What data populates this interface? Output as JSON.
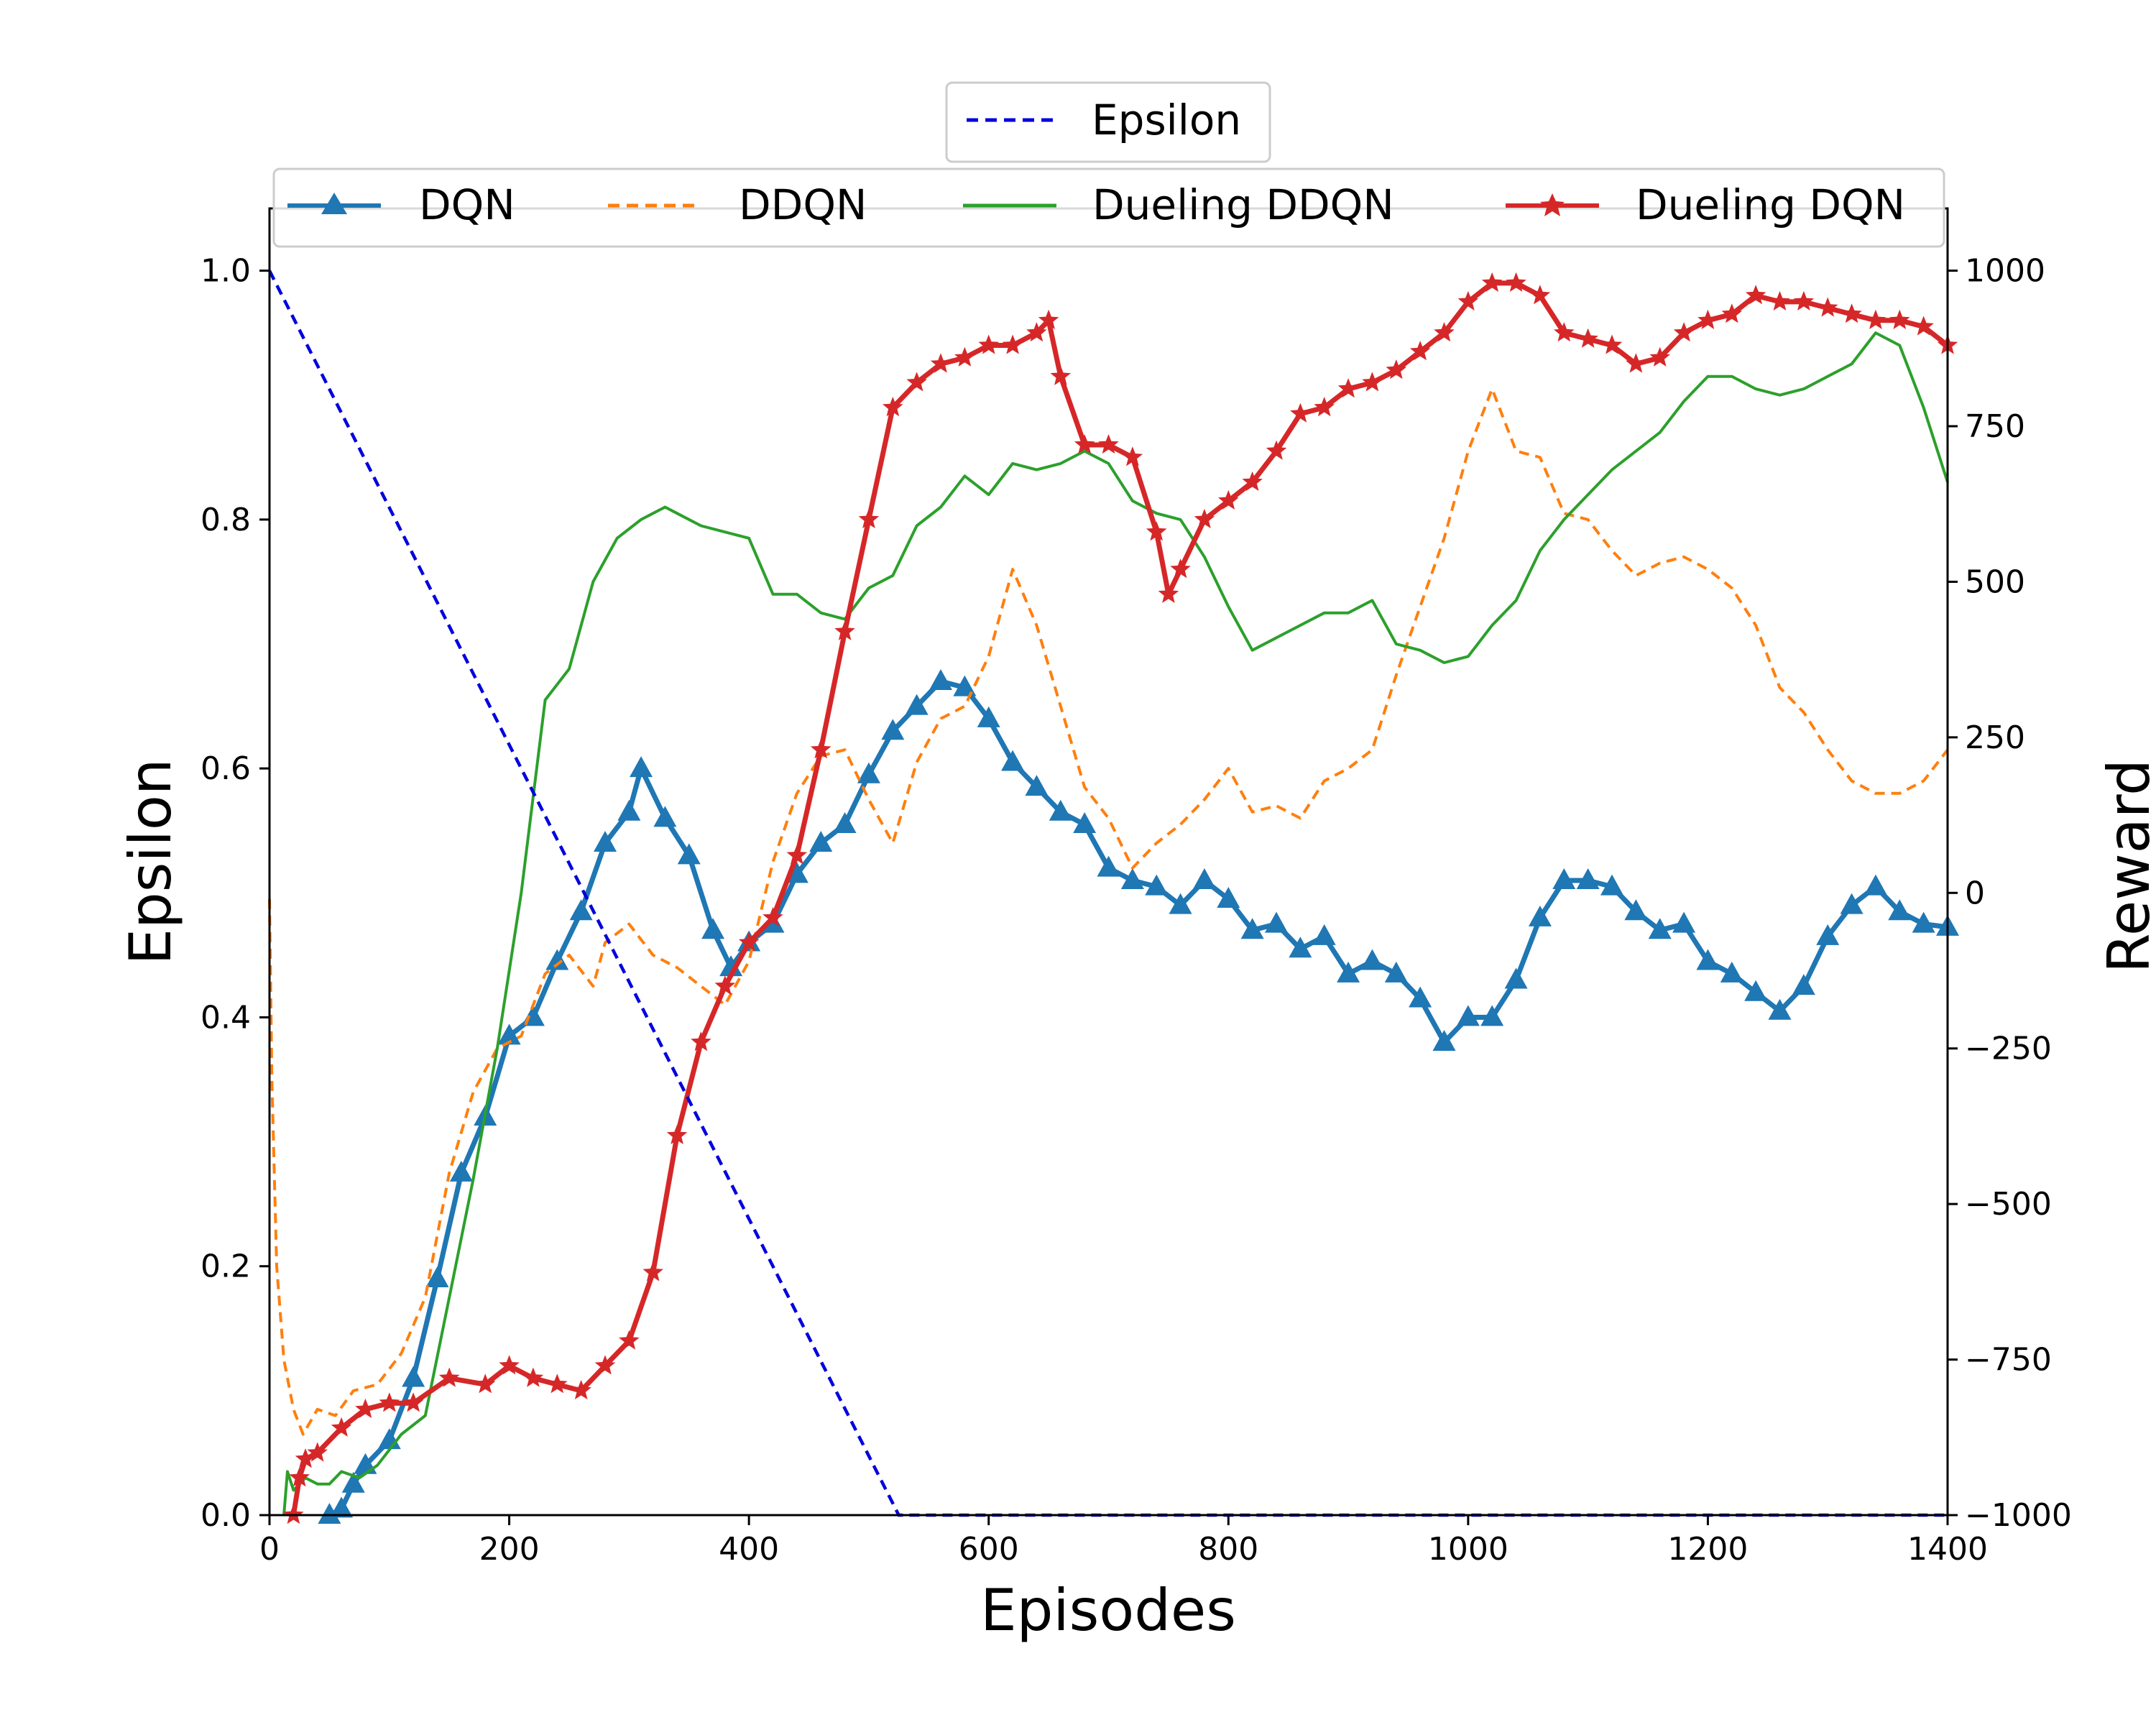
{
  "chart_data": {
    "type": "line",
    "xlabel": "Episodes",
    "ylabel_left": "Epsilon",
    "ylabel_right": "Reward",
    "xlim": [
      0,
      1400
    ],
    "ylim_left": [
      0,
      1.05
    ],
    "ylim_right": [
      -1000,
      1100
    ],
    "x_ticks": [
      "0",
      "200",
      "400",
      "600",
      "800",
      "1000",
      "1200",
      "1400"
    ],
    "y_left_ticks": [
      "0.0",
      "0.2",
      "0.4",
      "0.6",
      "0.8",
      "1.0"
    ],
    "y_right_ticks": [
      "−1000",
      "−750",
      "−500",
      "−250",
      "0",
      "250",
      "500",
      "750",
      "1000"
    ],
    "grid": false,
    "legend_top": {
      "placement": "top-center",
      "entries": [
        "Epsilon"
      ]
    },
    "legend_main": {
      "placement": "top",
      "entries": [
        "DQN",
        "DDQN",
        "Dueling DDQN",
        "Dueling DQN"
      ]
    },
    "epsilon": {
      "name": "Epsilon",
      "color": "#0000dd",
      "style": "dashed",
      "x": [
        0,
        525,
        1400
      ],
      "y": [
        1.0,
        0.0,
        0.0
      ]
    },
    "series": [
      {
        "name": "DQN",
        "color": "#1f77b4",
        "style": "solid",
        "marker": "triangle",
        "x": [
          50,
          60,
          70,
          80,
          100,
          120,
          140,
          160,
          180,
          200,
          220,
          240,
          260,
          280,
          300,
          310,
          330,
          350,
          370,
          385,
          400,
          420,
          440,
          460,
          480,
          500,
          520,
          540,
          560,
          580,
          600,
          620,
          640,
          660,
          680,
          700,
          720,
          740,
          760,
          780,
          800,
          820,
          840,
          860,
          880,
          900,
          920,
          940,
          960,
          980,
          1000,
          1020,
          1040,
          1060,
          1080,
          1100,
          1120,
          1140,
          1160,
          1180,
          1200,
          1220,
          1240,
          1260,
          1280,
          1300,
          1320,
          1340,
          1360,
          1380,
          1400
        ],
        "y": [
          -1000,
          -990,
          -950,
          -920,
          -880,
          -780,
          -620,
          -450,
          -360,
          -230,
          -200,
          -110,
          -30,
          80,
          130,
          200,
          120,
          60,
          -60,
          -120,
          -80,
          -50,
          30,
          80,
          110,
          190,
          260,
          300,
          340,
          330,
          280,
          210,
          170,
          130,
          110,
          40,
          20,
          10,
          -20,
          20,
          -10,
          -60,
          -50,
          -90,
          -70,
          -130,
          -110,
          -130,
          -170,
          -240,
          -200,
          -200,
          -140,
          -40,
          20,
          20,
          10,
          -30,
          -60,
          -50,
          -110,
          -130,
          -160,
          -190,
          -150,
          -70,
          -20,
          10,
          -30,
          -50,
          -55
        ]
      },
      {
        "name": "DDQN",
        "color": "#ff7f0e",
        "style": "dashed",
        "marker": "none",
        "x": [
          0,
          2,
          6,
          12,
          20,
          28,
          40,
          55,
          70,
          90,
          110,
          130,
          150,
          170,
          190,
          210,
          230,
          250,
          270,
          280,
          300,
          320,
          340,
          360,
          380,
          400,
          420,
          440,
          460,
          480,
          500,
          520,
          540,
          560,
          580,
          600,
          620,
          640,
          660,
          680,
          700,
          720,
          740,
          760,
          780,
          800,
          820,
          840,
          860,
          880,
          900,
          920,
          940,
          960,
          980,
          1000,
          1020,
          1040,
          1060,
          1080,
          1100,
          1120,
          1140,
          1160,
          1180,
          1200,
          1220,
          1240,
          1260,
          1280,
          1300,
          1320,
          1340,
          1360,
          1380,
          1400
        ],
        "y": [
          -10,
          -300,
          -600,
          -750,
          -830,
          -870,
          -830,
          -840,
          -800,
          -790,
          -740,
          -650,
          -450,
          -320,
          -250,
          -230,
          -130,
          -100,
          -150,
          -80,
          -50,
          -100,
          -120,
          -150,
          -180,
          -110,
          50,
          160,
          220,
          230,
          150,
          80,
          210,
          280,
          300,
          380,
          520,
          430,
          300,
          170,
          120,
          40,
          80,
          110,
          150,
          200,
          130,
          140,
          120,
          180,
          200,
          230,
          350,
          460,
          570,
          710,
          810,
          710,
          700,
          610,
          600,
          550,
          510,
          530,
          540,
          520,
          490,
          430,
          330,
          290,
          230,
          180,
          160,
          160,
          180,
          230
        ]
      },
      {
        "name": "Dueling DDQN",
        "color": "#2ca02c",
        "style": "solid",
        "marker": "none",
        "x": [
          12,
          15,
          20,
          30,
          40,
          50,
          60,
          75,
          90,
          110,
          130,
          150,
          170,
          190,
          210,
          230,
          250,
          270,
          290,
          310,
          320,
          330,
          340,
          360,
          380,
          400,
          420,
          440,
          460,
          480,
          500,
          520,
          540,
          560,
          580,
          600,
          620,
          640,
          660,
          680,
          700,
          720,
          740,
          760,
          780,
          800,
          820,
          840,
          860,
          880,
          900,
          920,
          940,
          960,
          980,
          1000,
          1020,
          1040,
          1060,
          1080,
          1100,
          1120,
          1140,
          1160,
          1180,
          1200,
          1220,
          1240,
          1260,
          1280,
          1300,
          1320,
          1340,
          1360,
          1380,
          1400
        ],
        "y": [
          -1000,
          -930,
          -960,
          -940,
          -950,
          -950,
          -930,
          -940,
          -920,
          -870,
          -840,
          -650,
          -460,
          -250,
          0,
          310,
          360,
          500,
          570,
          600,
          610,
          620,
          610,
          590,
          580,
          570,
          480,
          480,
          450,
          440,
          490,
          510,
          590,
          620,
          670,
          640,
          690,
          680,
          690,
          710,
          690,
          630,
          610,
          600,
          540,
          460,
          390,
          410,
          430,
          450,
          450,
          470,
          400,
          390,
          370,
          380,
          430,
          470,
          550,
          600,
          640,
          680,
          710,
          740,
          790,
          830,
          830,
          810,
          800,
          810,
          830,
          850,
          900,
          880,
          780,
          660
        ]
      },
      {
        "name": "Dueling DQN",
        "color": "#d62728",
        "style": "solid",
        "marker": "star",
        "x": [
          20,
          25,
          30,
          40,
          60,
          80,
          100,
          120,
          150,
          180,
          200,
          220,
          240,
          260,
          280,
          300,
          320,
          340,
          360,
          380,
          400,
          420,
          440,
          460,
          480,
          500,
          520,
          540,
          560,
          580,
          600,
          620,
          640,
          650,
          660,
          680,
          700,
          720,
          740,
          750,
          760,
          780,
          800,
          820,
          840,
          860,
          880,
          900,
          920,
          940,
          960,
          980,
          1000,
          1020,
          1040,
          1060,
          1080,
          1100,
          1120,
          1140,
          1160,
          1180,
          1200,
          1220,
          1240,
          1260,
          1280,
          1300,
          1320,
          1340,
          1360,
          1380,
          1400
        ],
        "y": [
          -1000,
          -940,
          -910,
          -900,
          -860,
          -830,
          -820,
          -820,
          -780,
          -790,
          -760,
          -780,
          -790,
          -800,
          -760,
          -720,
          -610,
          -390,
          -240,
          -150,
          -80,
          -40,
          60,
          230,
          420,
          600,
          780,
          820,
          850,
          860,
          880,
          880,
          900,
          920,
          830,
          720,
          720,
          700,
          580,
          480,
          520,
          600,
          630,
          660,
          710,
          770,
          780,
          810,
          820,
          840,
          870,
          900,
          950,
          980,
          980,
          960,
          900,
          890,
          880,
          850,
          860,
          900,
          920,
          930,
          960,
          950,
          950,
          940,
          930,
          920,
          920,
          910,
          880
        ]
      }
    ]
  }
}
